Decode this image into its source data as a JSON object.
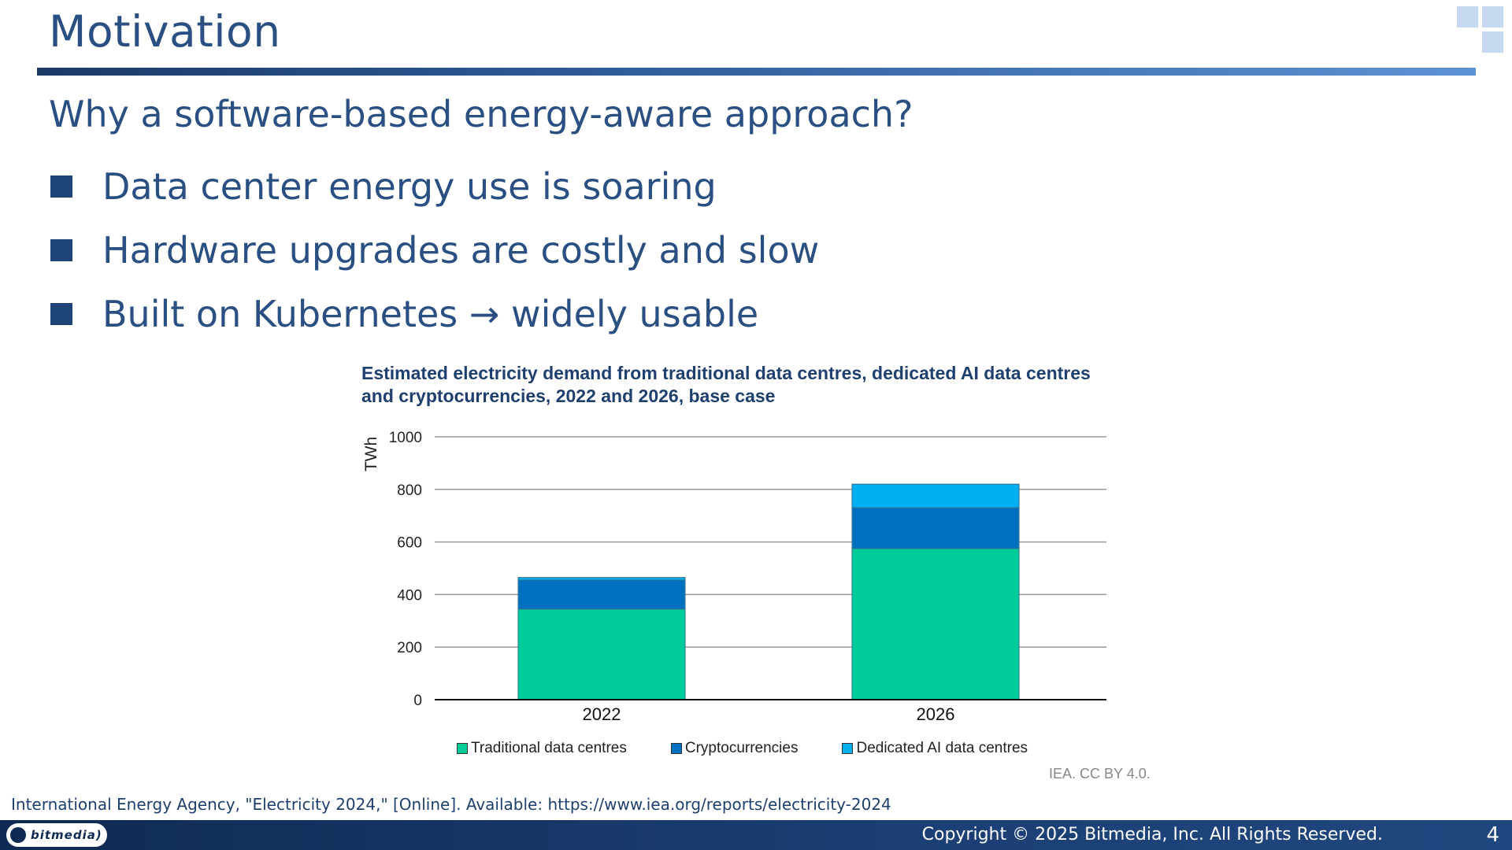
{
  "slide": {
    "title": "Motivation",
    "subtitle": "Why a software-based energy-aware approach?",
    "bullets": [
      "Data center energy use is soaring",
      "Hardware upgrades are costly and slow",
      "Built on Kubernetes → widely usable"
    ],
    "reference": "International Energy Agency, \"Electricity 2024,\" [Online]. Available: https://www.iea.org/reports/electricity-2024",
    "source_note": "IEA. CC BY 4.0."
  },
  "footer": {
    "logo_text": "bitmedia)",
    "copyright": "Copyright © 2025 Bitmedia, Inc. All Rights Reserved.",
    "page_number": "4"
  },
  "colors": {
    "title": "#2a4f82",
    "bullet": "#1f4478",
    "footer": "#0f2a52"
  },
  "chart_data": {
    "type": "bar",
    "stacked": true,
    "title": "Estimated electricity demand from traditional data centres, dedicated AI data centres and cryptocurrencies, 2022 and 2026, base case",
    "title_lines": [
      "Estimated electricity demand from traditional data centres, dedicated AI data centres",
      "and cryptocurrencies, 2022 and 2026, base case"
    ],
    "ylabel": "TWh",
    "xlabel": "",
    "ylim": [
      0,
      1000
    ],
    "yticks": [
      0,
      200,
      400,
      600,
      800,
      1000
    ],
    "categories": [
      "2022",
      "2026"
    ],
    "grid": true,
    "legend_position": "bottom",
    "series": [
      {
        "name": "Traditional data centres",
        "color": "#00cc99",
        "values": [
          345,
          575
        ]
      },
      {
        "name": "Cryptocurrencies",
        "color": "#0070c0",
        "values": [
          110,
          155
        ]
      },
      {
        "name": "Dedicated AI data centres",
        "color": "#00b0f0",
        "values": [
          10,
          90
        ]
      }
    ]
  }
}
